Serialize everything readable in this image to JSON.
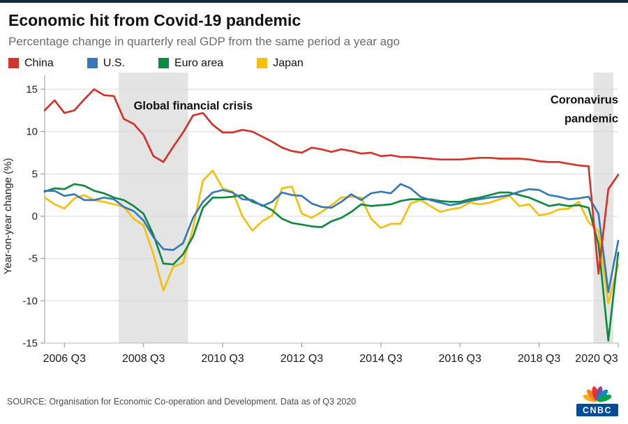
{
  "theme": {
    "top_bar": "#14283c"
  },
  "header": {
    "title": "Economic hit from Covid-19 pandemic",
    "subtitle": "Percentage change in quarterly real GDP from the same period a year ago"
  },
  "chart_data": {
    "type": "line",
    "ylabel": "Year-on-year change (%)",
    "ylim": [
      -15,
      15
    ],
    "ytick_step": 5,
    "grid": true,
    "legend_position": "top",
    "x": [
      "2006 Q1",
      "2006 Q2",
      "2006 Q3",
      "2006 Q4",
      "2007 Q1",
      "2007 Q2",
      "2007 Q3",
      "2007 Q4",
      "2008 Q1",
      "2008 Q2",
      "2008 Q3",
      "2008 Q4",
      "2009 Q1",
      "2009 Q2",
      "2009 Q3",
      "2009 Q4",
      "2010 Q1",
      "2010 Q2",
      "2010 Q3",
      "2010 Q4",
      "2011 Q1",
      "2011 Q2",
      "2011 Q3",
      "2011 Q4",
      "2012 Q1",
      "2012 Q2",
      "2012 Q3",
      "2012 Q4",
      "2013 Q1",
      "2013 Q2",
      "2013 Q3",
      "2013 Q4",
      "2014 Q1",
      "2014 Q2",
      "2014 Q3",
      "2014 Q4",
      "2015 Q1",
      "2015 Q2",
      "2015 Q3",
      "2015 Q4",
      "2016 Q1",
      "2016 Q2",
      "2016 Q3",
      "2016 Q4",
      "2017 Q1",
      "2017 Q2",
      "2017 Q3",
      "2017 Q4",
      "2018 Q1",
      "2018 Q2",
      "2018 Q3",
      "2018 Q4",
      "2019 Q1",
      "2019 Q2",
      "2019 Q3",
      "2019 Q4",
      "2020 Q1",
      "2020 Q2",
      "2020 Q3"
    ],
    "xticks": [
      "2006 Q3",
      "2008 Q3",
      "2010 Q3",
      "2012 Q3",
      "2014 Q3",
      "2016 Q3",
      "2018 Q3",
      "2020 Q3"
    ],
    "series": [
      {
        "name": "China",
        "color": "#d0342c",
        "values": [
          12.5,
          13.7,
          12.2,
          12.5,
          13.8,
          15.0,
          14.3,
          14.2,
          11.5,
          10.9,
          9.6,
          7.1,
          6.4,
          8.2,
          9.9,
          11.9,
          12.2,
          10.8,
          9.9,
          9.9,
          10.2,
          10.0,
          9.4,
          8.8,
          8.1,
          7.7,
          7.5,
          8.1,
          7.9,
          7.6,
          7.9,
          7.7,
          7.4,
          7.5,
          7.1,
          7.2,
          7.0,
          7.0,
          6.9,
          6.8,
          6.7,
          6.7,
          6.7,
          6.8,
          6.9,
          6.9,
          6.8,
          6.8,
          6.8,
          6.7,
          6.5,
          6.4,
          6.4,
          6.2,
          6.0,
          5.9,
          -6.8,
          3.2,
          4.9
        ]
      },
      {
        "name": "U.S.",
        "color": "#3579b8",
        "values": [
          3.0,
          3.0,
          2.4,
          2.6,
          1.9,
          1.9,
          2.2,
          2.0,
          1.1,
          0.6,
          -0.5,
          -2.5,
          -3.9,
          -4.0,
          -3.2,
          -0.2,
          1.7,
          2.8,
          3.1,
          2.8,
          2.0,
          1.9,
          1.2,
          1.7,
          2.8,
          2.5,
          2.4,
          1.5,
          1.1,
          1.0,
          1.7,
          2.6,
          1.9,
          2.7,
          2.9,
          2.7,
          3.8,
          3.3,
          2.3,
          1.9,
          1.6,
          1.3,
          1.5,
          1.8,
          2.0,
          2.2,
          2.3,
          2.5,
          2.9,
          3.2,
          3.1,
          2.5,
          2.3,
          2.0,
          2.1,
          2.3,
          0.3,
          -9.0,
          -2.9
        ]
      },
      {
        "name": "Euro area",
        "color": "#0e8a40",
        "values": [
          2.9,
          3.3,
          3.2,
          3.8,
          3.6,
          3.0,
          2.7,
          2.2,
          1.9,
          1.2,
          0.3,
          -2.2,
          -5.6,
          -5.7,
          -4.5,
          -2.4,
          1.0,
          2.2,
          2.2,
          2.3,
          2.5,
          1.7,
          1.3,
          0.7,
          -0.3,
          -0.8,
          -1.0,
          -1.2,
          -1.3,
          -0.6,
          -0.2,
          0.5,
          1.4,
          1.2,
          1.3,
          1.4,
          1.8,
          2.0,
          2.0,
          2.0,
          1.8,
          1.7,
          1.7,
          2.0,
          2.2,
          2.5,
          2.8,
          2.8,
          2.5,
          2.2,
          1.7,
          1.2,
          1.4,
          1.2,
          1.3,
          1.0,
          -3.3,
          -14.7,
          -4.3
        ]
      },
      {
        "name": "Japan",
        "color": "#f3c00c",
        "values": [
          2.2,
          1.4,
          0.9,
          2.1,
          2.5,
          1.9,
          1.7,
          1.4,
          1.1,
          -0.3,
          -1.1,
          -4.5,
          -8.8,
          -6.0,
          -5.5,
          -1.4,
          4.2,
          5.4,
          3.3,
          2.9,
          0.0,
          -1.7,
          -0.6,
          0.1,
          3.3,
          3.5,
          0.3,
          -0.2,
          0.5,
          1.3,
          2.2,
          2.3,
          2.2,
          -0.3,
          -1.4,
          -0.9,
          -0.9,
          1.5,
          1.9,
          1.2,
          0.5,
          0.8,
          1.0,
          1.6,
          1.4,
          1.6,
          2.0,
          2.4,
          1.2,
          1.4,
          0.1,
          0.3,
          0.8,
          0.9,
          1.7,
          -0.7,
          -1.8,
          -10.3,
          -5.7
        ]
      }
    ],
    "regions": [
      {
        "from": "2008 Q1",
        "to": "2009 Q3",
        "color": "#e4e4e4"
      },
      {
        "from": "2020 Q1",
        "to": "2020 Q2",
        "color": "#e4e4e4"
      }
    ],
    "annotations": [
      {
        "lines": [
          "Global financial crisis"
        ],
        "x": "2008 Q2",
        "y": 12.6,
        "anchor": "start"
      },
      {
        "lines": [
          "Coronavirus",
          "pandemic"
        ],
        "x": "2020 Q3",
        "y": 13.3,
        "anchor": "end"
      }
    ]
  },
  "footer": {
    "source": "SOURCE: Organisation for Economic Co-operation and Development. Data as of Q3 2020",
    "logo_text": "CNBC"
  }
}
